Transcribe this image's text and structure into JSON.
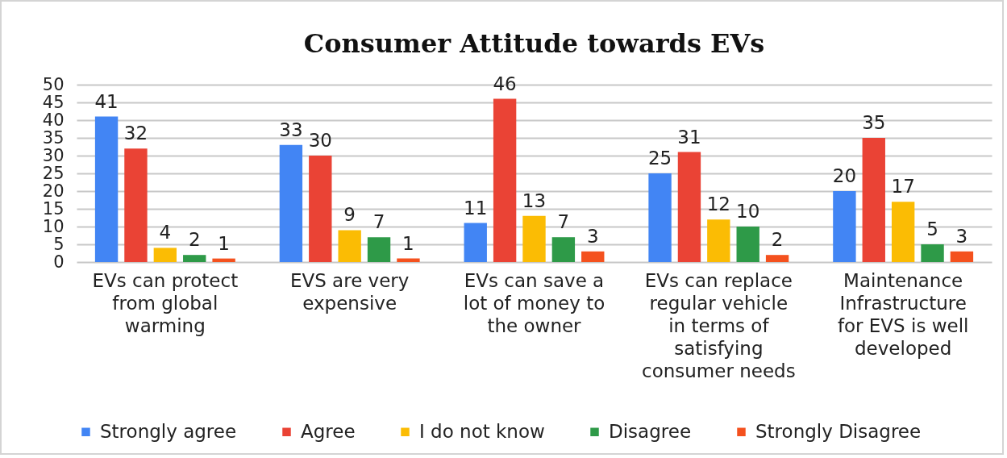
{
  "chart_data": {
    "type": "bar",
    "title": "Consumer Attitude towards EVs",
    "categories": [
      "EVs can protect from global warming",
      "EVS are very expensive",
      "EVs can save a lot of money to the owner",
      "EVs can replace regular vehicle in terms of satisfying consumer needs",
      "Maintenance Infrastructure for EVS is well developed"
    ],
    "series": [
      {
        "name": "Strongly agree",
        "color": "#4285f4",
        "values": [
          41,
          33,
          11,
          25,
          20
        ]
      },
      {
        "name": "Agree",
        "color": "#ea4335",
        "values": [
          32,
          30,
          46,
          31,
          35
        ]
      },
      {
        "name": "I do not know",
        "color": "#fbbc04",
        "values": [
          4,
          9,
          13,
          12,
          17
        ]
      },
      {
        "name": "Disagree",
        "color": "#2e9a48",
        "values": [
          2,
          7,
          7,
          10,
          5
        ]
      },
      {
        "name": "Strongly Disagree",
        "color": "#f4511e",
        "values": [
          1,
          1,
          3,
          2,
          3
        ]
      }
    ],
    "ylim": [
      0,
      50
    ],
    "yticks": [
      0,
      5,
      10,
      15,
      20,
      25,
      30,
      35,
      40,
      45,
      50
    ],
    "grid": "y",
    "legend": "bottom",
    "data_labels": true
  }
}
